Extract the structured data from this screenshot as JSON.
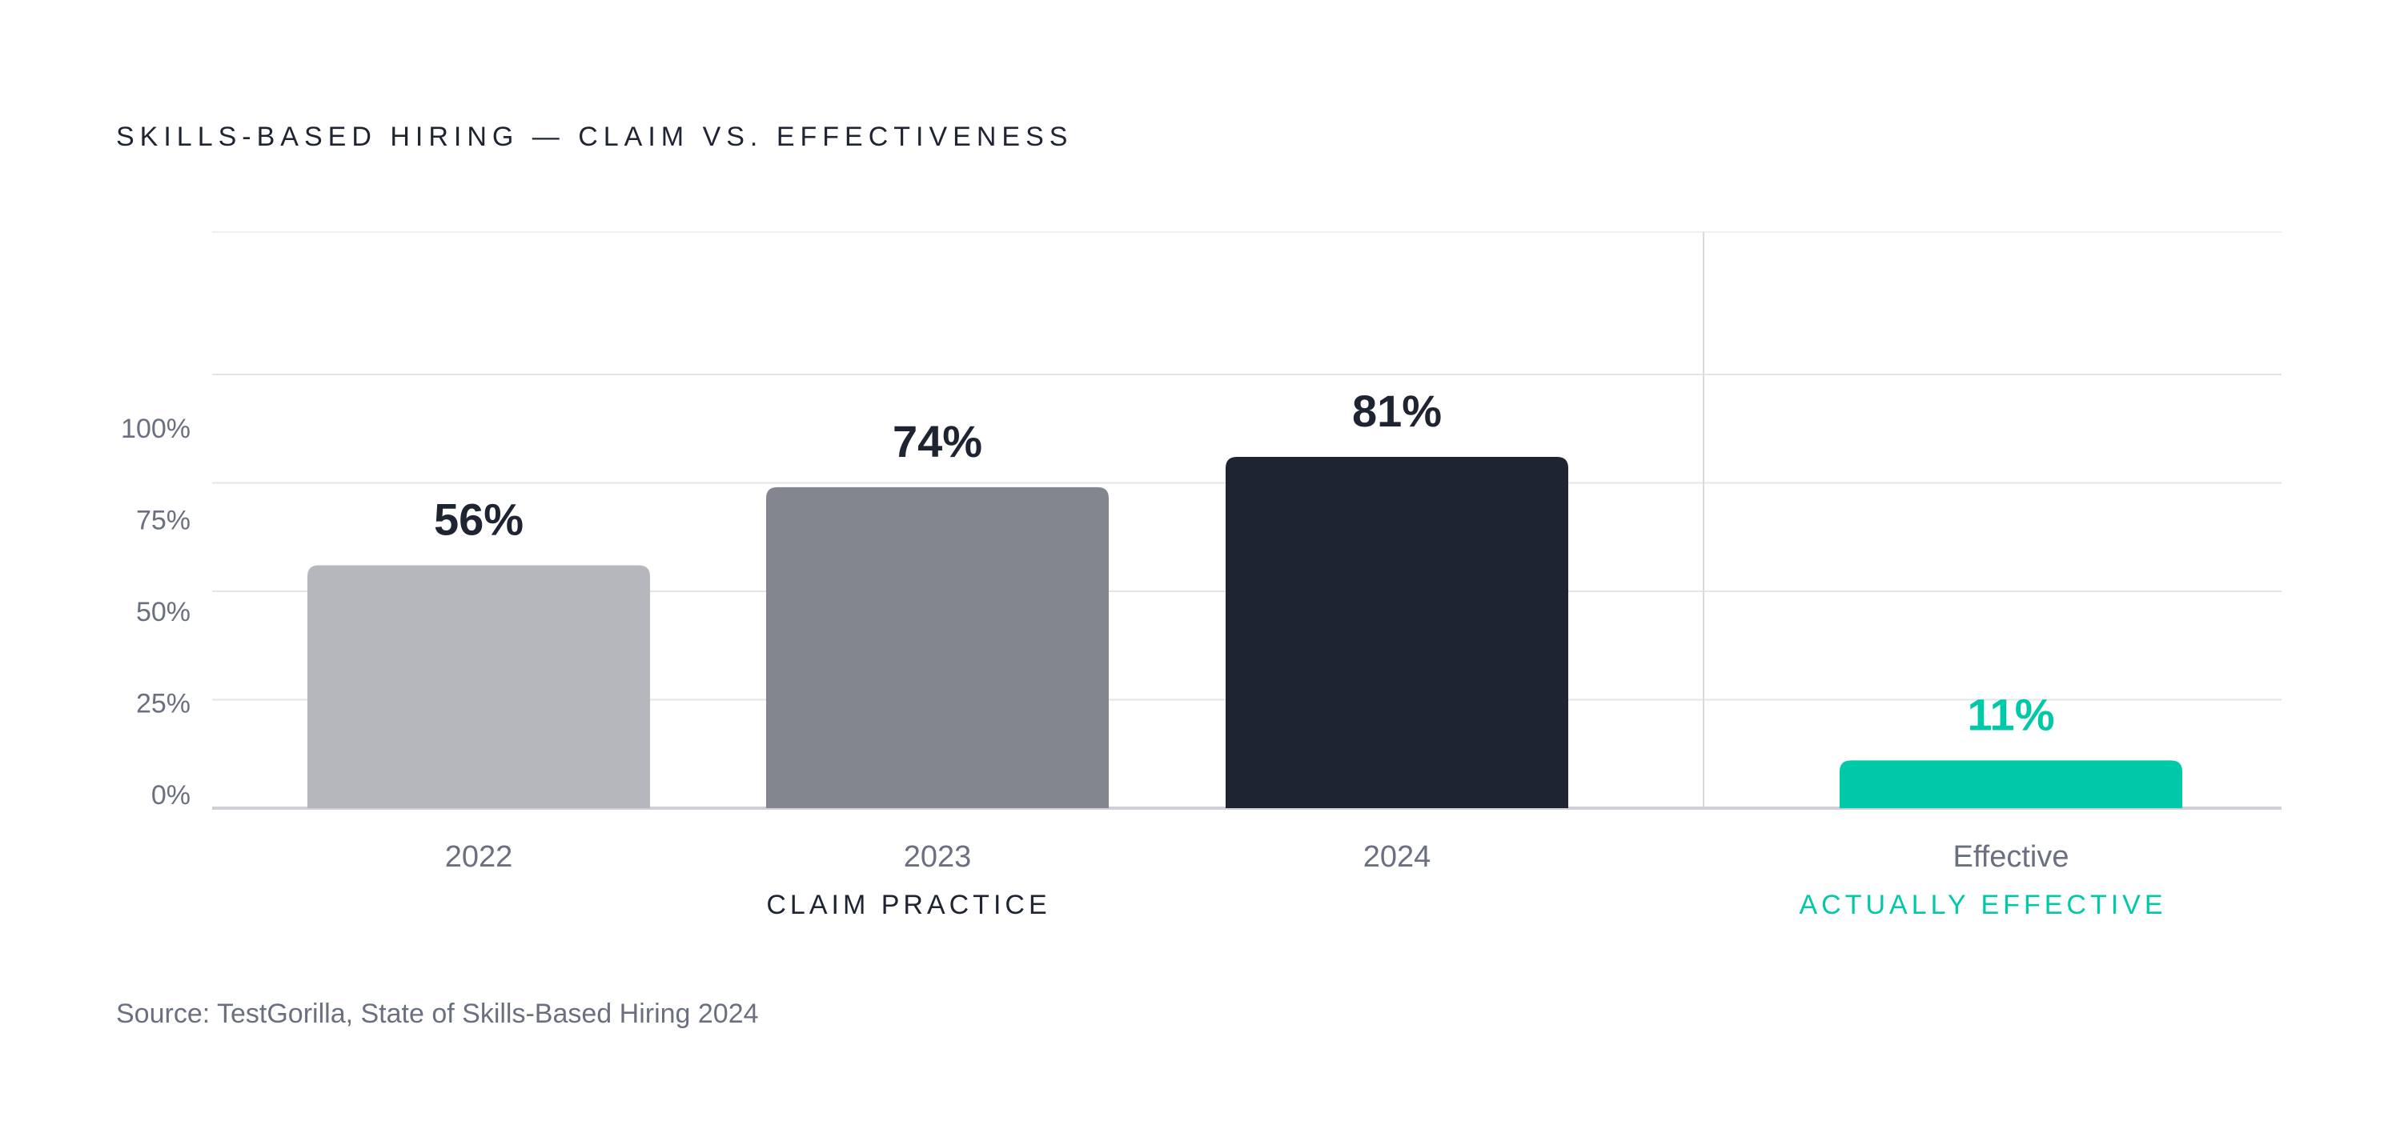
{
  "header": {
    "title": "SKILLS-BASED HIRING — CLAIM VS. EFFECTIVENESS"
  },
  "footer": {
    "source": "Source: TestGorilla, State of Skills-Based Hiring 2024"
  },
  "colors": {
    "bar_2022": "#b6b7bc",
    "bar_2023": "#83868e",
    "bar_2024": "#1f2432",
    "bar_effective": "#00c9a7",
    "text_dark": "#1f2432",
    "text_muted": "#6b7080",
    "accent": "#00c9a7"
  },
  "chart_data": {
    "type": "bar",
    "categories": [
      "2022",
      "2023",
      "2024",
      "Effective"
    ],
    "values": [
      56,
      74,
      81,
      11
    ],
    "value_labels": [
      "56%",
      "74%",
      "81%",
      "11%"
    ],
    "groups": [
      {
        "label": "CLAIM PRACTICE",
        "categories": [
          "2022",
          "2023",
          "2024"
        ]
      },
      {
        "label": "ACTUALLY EFFECTIVE",
        "categories": [
          "Effective"
        ]
      }
    ],
    "y_ticks": [
      0,
      25,
      50,
      75,
      100
    ],
    "y_tick_labels": [
      "0%",
      "25%",
      "50%",
      "75%",
      "100%"
    ],
    "ylim": [
      0,
      100
    ],
    "grid": true,
    "title": "SKILLS-BASED HIRING — CLAIM VS. EFFECTIVENESS",
    "xlabel": "",
    "ylabel": ""
  }
}
